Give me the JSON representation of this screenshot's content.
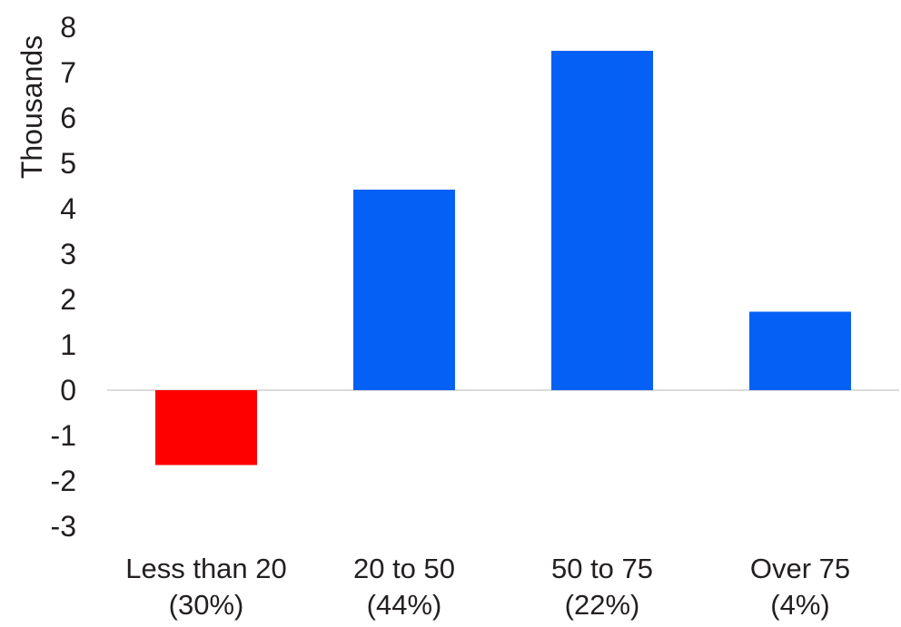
{
  "chart_data": {
    "type": "bar",
    "categories": [
      "Less than 20",
      "20 to 50",
      "50 to 75",
      "Over 75"
    ],
    "category_sublabels": [
      "(30%)",
      "(44%)",
      "(22%)",
      "(4%)"
    ],
    "values": [
      -1.65,
      4.42,
      7.48,
      1.73
    ],
    "ylabel": "Thousands",
    "xlabel": "",
    "ylim": [
      -3,
      8
    ],
    "yticks": [
      8,
      7,
      6,
      5,
      4,
      3,
      2,
      1,
      0,
      -1,
      -2,
      -3
    ],
    "grid": false,
    "legend": "none",
    "colors": {
      "positive": "#0560f5",
      "negative": "#ff0000",
      "zero_line": "#d0d0d0",
      "text": "#231f20"
    }
  }
}
